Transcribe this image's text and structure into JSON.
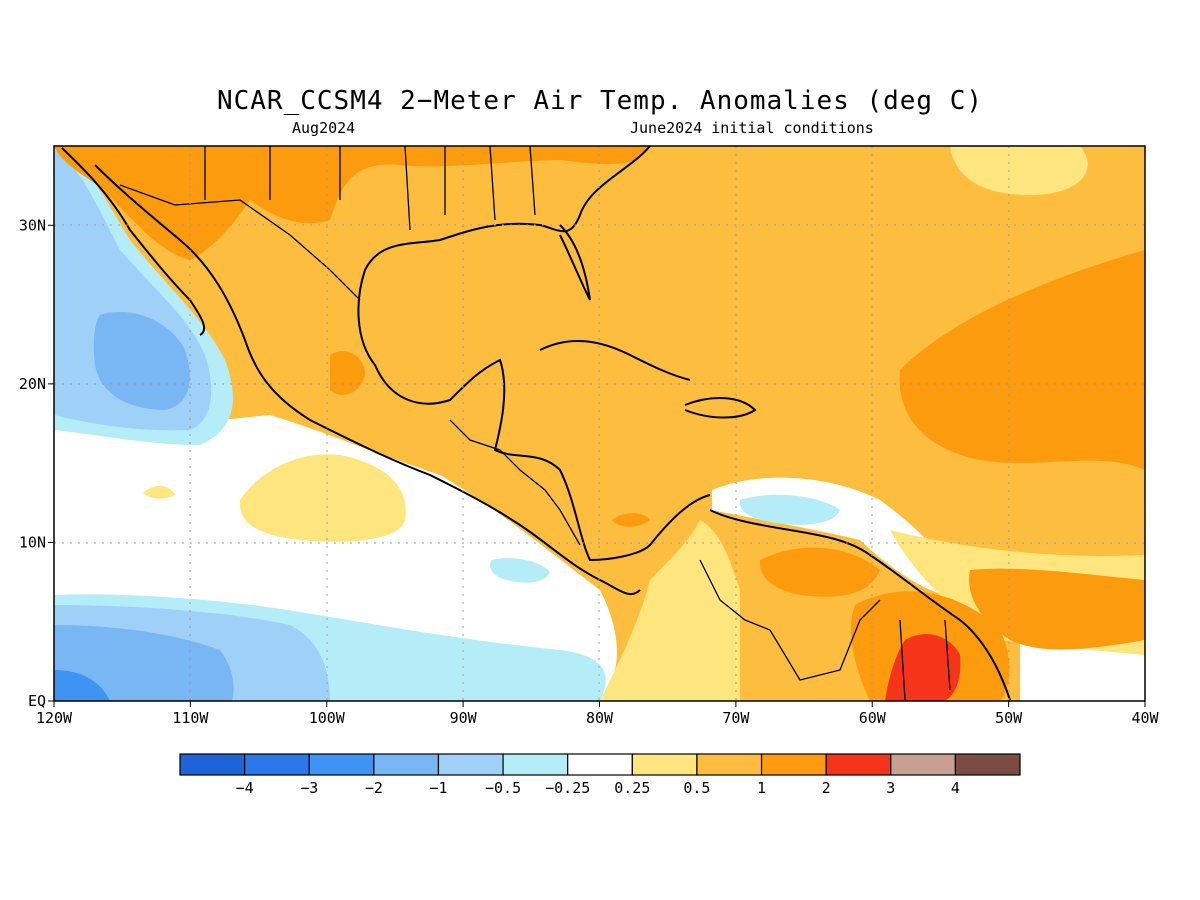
{
  "title": "NCAR_CCSM4 2−Meter Air Temp. Anomalies (deg C)",
  "subtitle_left": "Aug2024",
  "subtitle_right": "June2024 initial conditions",
  "map": {
    "projection": "lat-lon",
    "lon_range": [
      -120,
      -40
    ],
    "lat_range": [
      0,
      35
    ],
    "grid": "dotted",
    "x_ticks": [
      {
        "lon": -120,
        "label": "120W"
      },
      {
        "lon": -110,
        "label": "110W"
      },
      {
        "lon": -100,
        "label": "100W"
      },
      {
        "lon": -90,
        "label": "90W"
      },
      {
        "lon": -80,
        "label": "80W"
      },
      {
        "lon": -70,
        "label": "70W"
      },
      {
        "lon": -60,
        "label": "60W"
      },
      {
        "lon": -50,
        "label": "50W"
      },
      {
        "lon": -40,
        "label": "40W"
      }
    ],
    "y_ticks": [
      {
        "lat": 0,
        "label": "EQ"
      },
      {
        "lat": 10,
        "label": "10N"
      },
      {
        "lat": 20,
        "label": "20N"
      },
      {
        "lat": 30,
        "label": "30N"
      }
    ]
  },
  "colorbar": {
    "colors": [
      "#1e63d8",
      "#2c78ea",
      "#3d94f2",
      "#78b6f4",
      "#9fd1f8",
      "#b4edf8",
      "#ffffff",
      "#ffe57e",
      "#fdbe3f",
      "#fd9b0e",
      "#f5341a",
      "#c8a092",
      "#7a4c44"
    ],
    "labels": [
      "−4",
      "−3",
      "−2",
      "−1",
      "−0.5",
      "−0.25",
      "0.25",
      "0.5",
      "1",
      "2",
      "3",
      "4"
    ]
  }
}
